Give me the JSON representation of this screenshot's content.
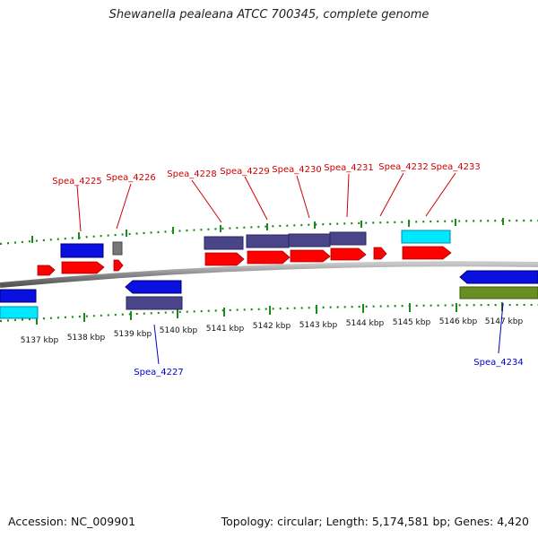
{
  "title": "Shewanella pealeana ATCC 700345, complete genome",
  "footer": {
    "accession": "Accession: NC_009901",
    "info": "Topology: circular; Length: 5,174,581 bp; Genes: 4,420"
  },
  "colors": {
    "red_cds": "#ff0000",
    "blue": "#0a10e0",
    "navy": "#4a4488",
    "cyan": "#00e8ff",
    "gray": "#777777",
    "olive": "#6b8e23",
    "tick_green": "#1a8a1a",
    "label_red": "#d00000",
    "label_blue": "#0000cc"
  },
  "axis_labels": [
    "5137 kbp",
    "5138 kbp",
    "5139 kbp",
    "5140 kbp",
    "5141 kbp",
    "5142 kbp",
    "5143 kbp",
    "5144 kbp",
    "5145 kbp",
    "5146 kbp",
    "5147 kbp"
  ],
  "gene_labels_top": [
    "Spea_4225",
    "Spea_4226",
    "Spea_4228",
    "Spea_4229",
    "Spea_4230",
    "Spea_4231",
    "Spea_4232",
    "Spea_4233"
  ],
  "gene_labels_bottom": [
    "Spea_4227",
    "Spea_4234"
  ]
}
